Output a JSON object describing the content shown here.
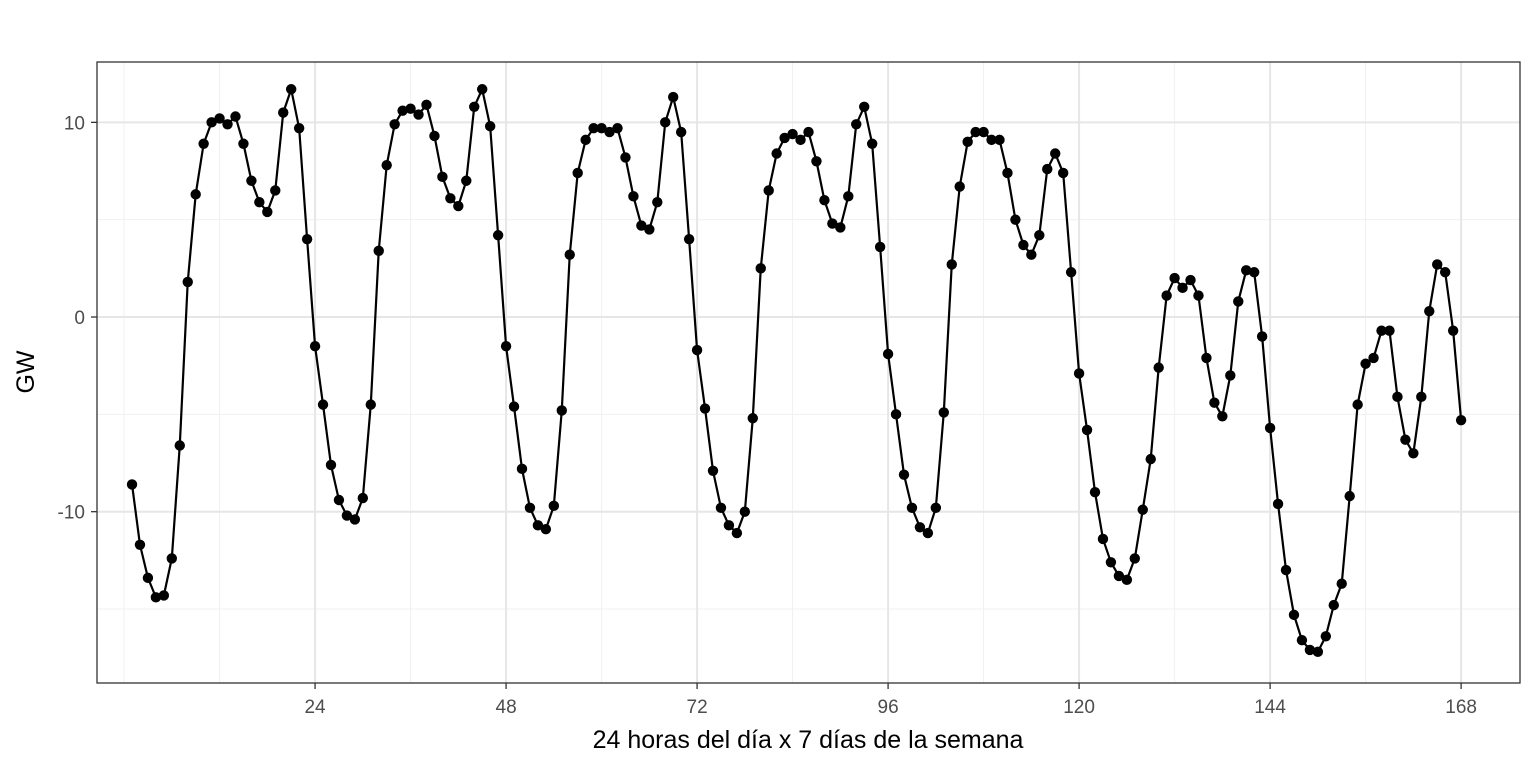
{
  "chart_data": {
    "type": "line",
    "title": "",
    "xlabel": "24 horas del día x 7 días de la semana",
    "ylabel": "GW",
    "xlim": [
      -3.4,
      175.4
    ],
    "ylim": [
      -18.8,
      13.1
    ],
    "x_ticks": [
      24,
      48,
      72,
      96,
      120,
      144,
      168
    ],
    "x_tick_labels": [
      "24",
      "48",
      "72",
      "96",
      "120",
      "144",
      "168"
    ],
    "y_ticks": [
      -10,
      0,
      10
    ],
    "y_tick_labels": [
      "-10",
      "0",
      "10"
    ],
    "x_minor_ticks": [
      12,
      36,
      60,
      84,
      108,
      132,
      156
    ],
    "y_minor_ticks": [
      -15,
      -5,
      5
    ],
    "grid": true,
    "legend": "none",
    "series": [
      {
        "name": "GW",
        "color": "#000000",
        "x": [
          1,
          2,
          3,
          4,
          5,
          6,
          7,
          8,
          9,
          10,
          11,
          12,
          13,
          14,
          15,
          16,
          17,
          18,
          19,
          20,
          21,
          22,
          23,
          24,
          25,
          26,
          27,
          28,
          29,
          30,
          31,
          32,
          33,
          34,
          35,
          36,
          37,
          38,
          39,
          40,
          41,
          42,
          43,
          44,
          45,
          46,
          47,
          48,
          49,
          50,
          51,
          52,
          53,
          54,
          55,
          56,
          57,
          58,
          59,
          60,
          61,
          62,
          63,
          64,
          65,
          66,
          67,
          68,
          69,
          70,
          71,
          72,
          73,
          74,
          75,
          76,
          77,
          78,
          79,
          80,
          81,
          82,
          83,
          84,
          85,
          86,
          87,
          88,
          89,
          90,
          91,
          92,
          93,
          94,
          95,
          96,
          97,
          98,
          99,
          100,
          101,
          102,
          103,
          104,
          105,
          106,
          107,
          108,
          109,
          110,
          111,
          112,
          113,
          114,
          115,
          116,
          117,
          118,
          119,
          120,
          121,
          122,
          123,
          124,
          125,
          126,
          127,
          128,
          129,
          130,
          131,
          132,
          133,
          134,
          135,
          136,
          137,
          138,
          139,
          140,
          141,
          142,
          143,
          144,
          145,
          146,
          147,
          148,
          149,
          150,
          151,
          152,
          153,
          154,
          155,
          156,
          157,
          158,
          159,
          160,
          161,
          162,
          163,
          164,
          165,
          166,
          167,
          168
        ],
        "y": [
          -8.6,
          -11.7,
          -13.4,
          -14.4,
          -14.3,
          -12.4,
          -6.6,
          1.8,
          6.3,
          8.9,
          10.0,
          10.2,
          9.9,
          10.3,
          8.9,
          7.0,
          5.9,
          5.4,
          6.5,
          10.5,
          11.7,
          9.7,
          4.0,
          -1.5,
          -4.5,
          -7.6,
          -9.4,
          -10.2,
          -10.4,
          -9.3,
          -4.5,
          3.4,
          7.8,
          9.9,
          10.6,
          10.7,
          10.4,
          10.9,
          9.3,
          7.2,
          6.1,
          5.7,
          7.0,
          10.8,
          11.7,
          9.8,
          4.2,
          -1.5,
          -4.6,
          -7.8,
          -9.8,
          -10.7,
          -10.9,
          -9.7,
          -4.8,
          3.2,
          7.4,
          9.1,
          9.7,
          9.7,
          9.5,
          9.7,
          8.2,
          6.2,
          4.7,
          4.5,
          5.9,
          10.0,
          11.3,
          9.5,
          4.0,
          -1.7,
          -4.7,
          -7.9,
          -9.8,
          -10.7,
          -11.1,
          -10.0,
          -5.2,
          2.5,
          6.5,
          8.4,
          9.2,
          9.4,
          9.1,
          9.5,
          8.0,
          6.0,
          4.8,
          4.6,
          6.2,
          9.9,
          10.8,
          8.9,
          3.6,
          -1.9,
          -5.0,
          -8.1,
          -9.8,
          -10.8,
          -11.1,
          -9.8,
          -4.9,
          2.7,
          6.7,
          9.0,
          9.5,
          9.5,
          9.1,
          9.1,
          7.4,
          5.0,
          3.7,
          3.2,
          4.2,
          7.6,
          8.4,
          7.4,
          2.3,
          -2.9,
          -5.8,
          -9.0,
          -11.4,
          -12.6,
          -13.3,
          -13.5,
          -12.4,
          -9.9,
          -7.3,
          -2.6,
          1.1,
          2.0,
          1.5,
          1.9,
          1.1,
          -2.1,
          -4.4,
          -5.1,
          -3.0,
          0.8,
          2.4,
          2.3,
          -1.0,
          -5.7,
          -9.6,
          -13.0,
          -15.3,
          -16.6,
          -17.1,
          -17.2,
          -16.4,
          -14.8,
          -13.7,
          -9.2,
          -4.5,
          -2.4,
          -2.1,
          -0.7,
          -0.7,
          -4.1,
          -6.3,
          -7.0,
          -4.1,
          0.3,
          2.7,
          2.3,
          -0.7,
          -5.3
        ]
      }
    ]
  }
}
